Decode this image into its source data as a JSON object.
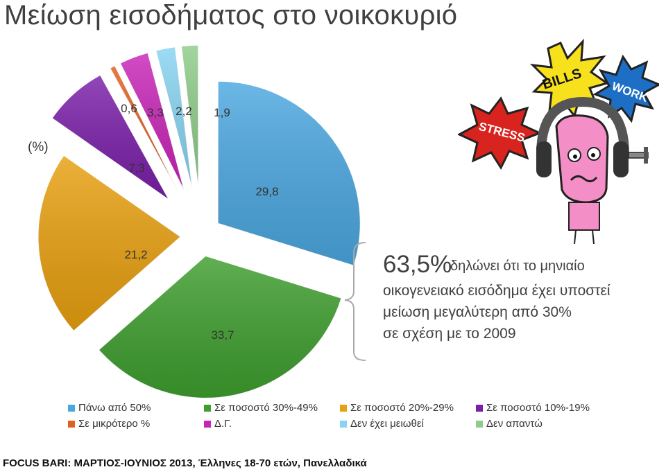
{
  "title": "Μείωση εισοδήματος στο νοικοκυριό",
  "unit_label": "(%)",
  "chart_data": {
    "type": "pie",
    "title": "Μείωση εισοδήματος στο νοικοκυριό",
    "unit": "(%)",
    "categories": [
      "Πάνω από 50%",
      "Σε ποσοστό 30%-49%",
      "Σε ποσοστό 20%-29%",
      "Σε ποσοστό 10%-19%",
      "Σε μικρότερο %",
      "Δ.Γ.",
      "Δεν έχει μειωθεί",
      "Δεν απαντώ"
    ],
    "values": [
      29.8,
      33.7,
      21.2,
      7.3,
      0.6,
      3.3,
      2.2,
      1.9
    ],
    "value_labels": [
      "29,8",
      "33,7",
      "21,2",
      "7,3",
      "0,6",
      "3,3",
      "2,2",
      "1,9"
    ],
    "colors": [
      "#4BA7E0",
      "#3E9E2E",
      "#E8A010",
      "#7A1FA8",
      "#E06020",
      "#C825B8",
      "#88D4F2",
      "#8FCC8A"
    ],
    "exploded": true,
    "legend_position": "bottom"
  },
  "callout": {
    "percent": "63,5%",
    "line1": "δηλώνει ότι το μηνιαίο",
    "line2": "οικογενειακό εισόδημα έχει υποστεί",
    "line3": "μείωση μεγαλύτερη από 30%",
    "line4": "σε σχέση με το 2009"
  },
  "illustration": {
    "signs": [
      "BILLS",
      "WORK",
      "STRESS"
    ]
  },
  "source": "FOCUS BARI: ΜΑΡΤΙΟΣ-ΙΟΥΝΙΟΣ 2013, Έλληνες 18-70 ετών, Πανελλαδικά"
}
